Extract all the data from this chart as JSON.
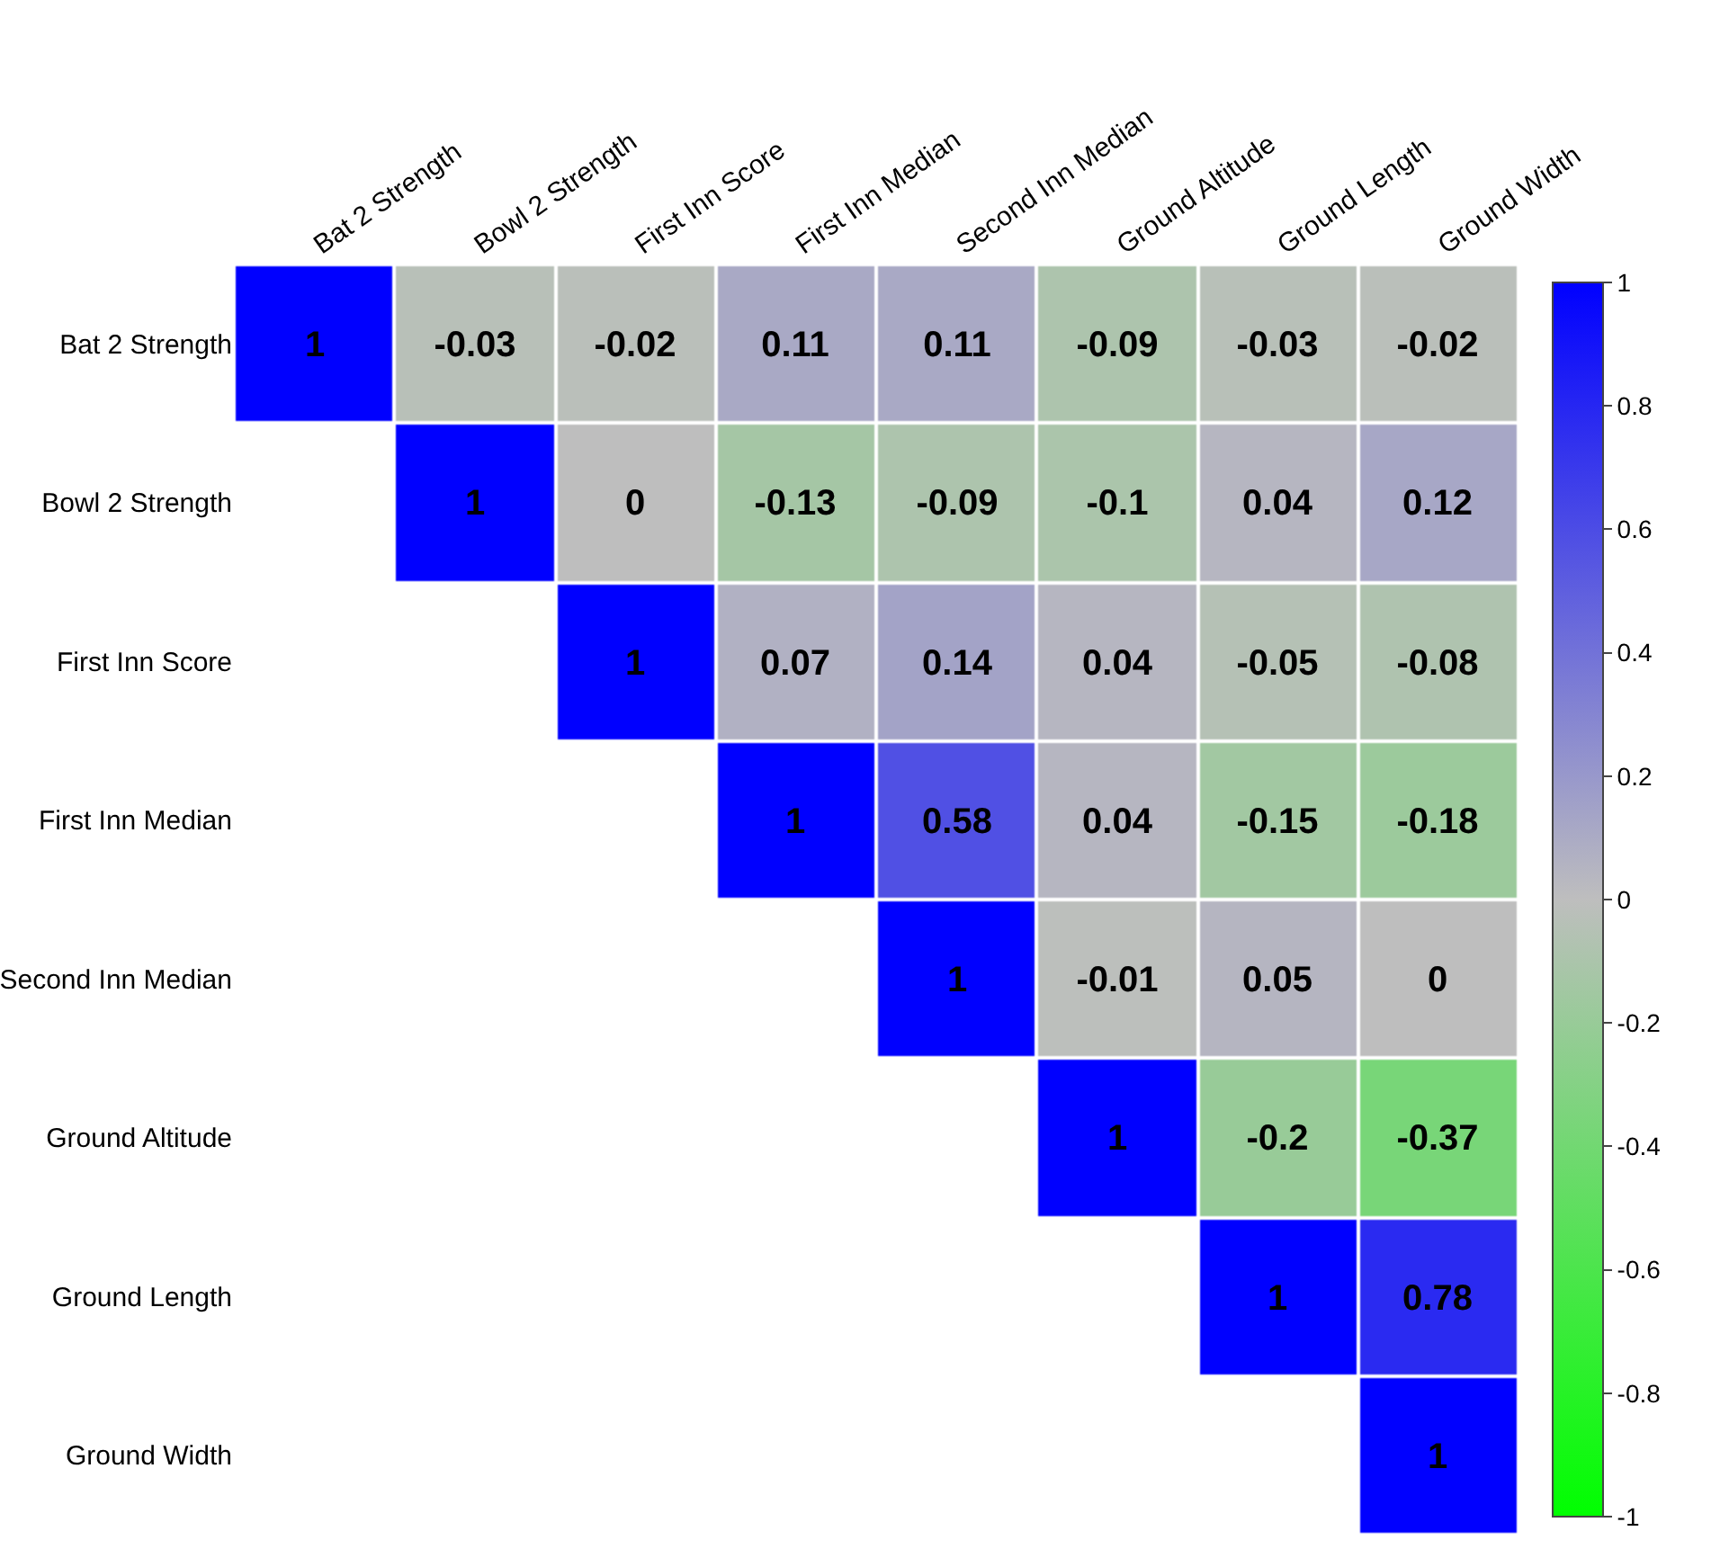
{
  "chart_data": {
    "type": "heatmap",
    "categories": [
      "Bat 2 Strength",
      "Bowl 2 Strength",
      "First Inn Score",
      "First Inn Median",
      "Second Inn Median",
      "Ground Altitude",
      "Ground Length",
      "Ground Width"
    ],
    "y_categories": [
      "Bat 2 Strength",
      "Bowl 2 Strength",
      "First Inn Score",
      "First Inn Median",
      "Second Inn Median",
      "Ground Altitude",
      "Ground Length",
      "Ground Width"
    ],
    "cells": [
      [
        1,
        -0.03,
        -0.02,
        0.11,
        0.11,
        -0.09,
        -0.03,
        -0.02
      ],
      [
        null,
        1,
        0,
        -0.13,
        -0.09,
        -0.1,
        0.04,
        0.12
      ],
      [
        null,
        null,
        1,
        0.07,
        0.14,
        0.04,
        -0.05,
        -0.08
      ],
      [
        null,
        null,
        null,
        1,
        0.58,
        0.04,
        -0.15,
        -0.18
      ],
      [
        null,
        null,
        null,
        null,
        1,
        -0.01,
        0.05,
        0
      ],
      [
        null,
        null,
        null,
        null,
        null,
        1,
        -0.2,
        -0.37
      ],
      [
        null,
        null,
        null,
        null,
        null,
        null,
        1,
        0.78
      ],
      [
        null,
        null,
        null,
        null,
        null,
        null,
        null,
        1
      ]
    ],
    "colors": [
      "#00ff00",
      "#bebebe",
      "#0000ff"
    ],
    "clim": [
      -1,
      1
    ],
    "cticks": [
      -1,
      -0.8,
      -0.6,
      -0.4,
      -0.2,
      0,
      0.2,
      0.4,
      0.6,
      0.8,
      1
    ],
    "data_labels": true
  }
}
